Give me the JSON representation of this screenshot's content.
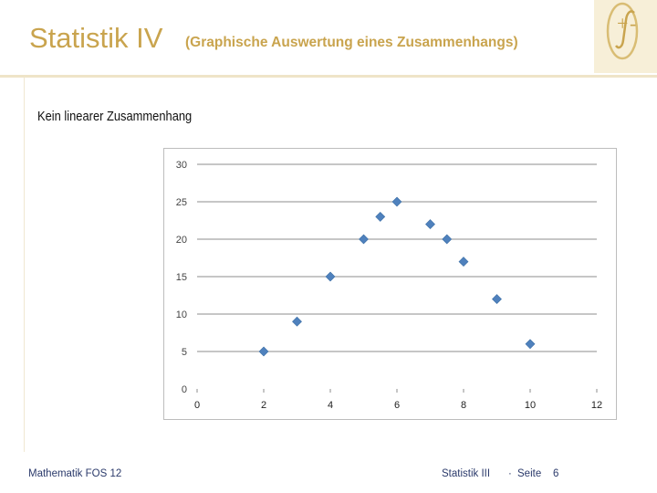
{
  "slide": {
    "title": "Statistik IV",
    "subtitle": "(Graphische Auswertung eines Zusammenhangs)",
    "section_heading": "Kein linearer Zusammenhang",
    "accent_color": "#c9a44e",
    "logo_icon": "integral-plus-minus-icon"
  },
  "footer": {
    "left": "Mathematik FOS 12",
    "center": "Statistik III",
    "separator": "·",
    "page_label": "Seite",
    "page_number": "6"
  },
  "chart_data": {
    "type": "scatter",
    "title": "",
    "xlabel": "",
    "ylabel": "",
    "xlim": [
      0,
      12
    ],
    "ylim": [
      0,
      30
    ],
    "xticks": [
      "0",
      "2",
      "4",
      "6",
      "8",
      "10",
      "12"
    ],
    "yticks": [
      "0",
      "5",
      "10",
      "15",
      "20",
      "25",
      "30"
    ],
    "grid": "horizontal",
    "marker": "diamond",
    "marker_color": "#4f81bd",
    "series": [
      {
        "x": [
          2,
          3,
          4,
          5,
          5.5,
          6,
          7,
          7.5,
          8,
          9,
          10
        ],
        "y": [
          5,
          9,
          15,
          20,
          23,
          25,
          22,
          20,
          17,
          12,
          6
        ]
      }
    ]
  }
}
